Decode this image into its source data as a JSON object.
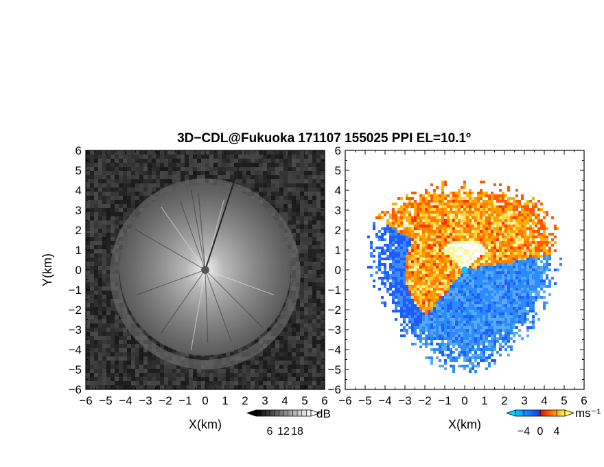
{
  "chart_data": {
    "title": "3D−CDL@Fukuoka 171107 155025 PPI EL=10.1º",
    "panels": [
      {
        "id": "snr",
        "type": "heatmap",
        "xlabel": "X(km)",
        "ylabel": "Y(km)",
        "xlim": [
          -6,
          6
        ],
        "ylim": [
          -6,
          6
        ],
        "xticks": [
          "−6",
          "−5",
          "−4",
          "−3",
          "−2",
          "−1",
          "0",
          "1",
          "2",
          "3",
          "4",
          "5",
          "6"
        ],
        "yticks": [
          "6",
          "5",
          "4",
          "3",
          "2",
          "1",
          "0",
          "−1",
          "−2",
          "−3",
          "−4",
          "−5",
          "−6"
        ],
        "colorbar": {
          "unit": "dB",
          "ticks": [
            "6",
            "12",
            "18"
          ],
          "values": [
            6,
            12,
            18
          ],
          "range": [
            0,
            24
          ],
          "colors": [
            "#000000",
            "#ffffff"
          ]
        },
        "echo_radius_km": 4.3,
        "ring_radius_km": 5.3,
        "center_blank_radius_km": 0.2
      },
      {
        "id": "velocity",
        "type": "heatmap",
        "xlabel": "X(km)",
        "yticks": [
          "6",
          "5",
          "4",
          "3",
          "2",
          "1",
          "0",
          "−1",
          "−2",
          "−3",
          "−4",
          "−5",
          "−6"
        ],
        "xticks": [
          "−6",
          "−5",
          "−4",
          "−3",
          "−2",
          "−1",
          "0",
          "1",
          "2",
          "3",
          "4",
          "5",
          "6"
        ],
        "xlim": [
          -6,
          6
        ],
        "ylim": [
          -6,
          6
        ],
        "colorbar": {
          "unit": "ms⁻¹",
          "ticks": [
            "−4",
            "0",
            "4"
          ],
          "values": [
            -4,
            0,
            4
          ],
          "range": [
            -6,
            6
          ],
          "colors": [
            "#00c8ff",
            "#0a50ff",
            "#ff3000",
            "#ffff40"
          ]
        },
        "echo_radius_km": 4.3,
        "ring_radius_km": 5.3
      }
    ]
  }
}
